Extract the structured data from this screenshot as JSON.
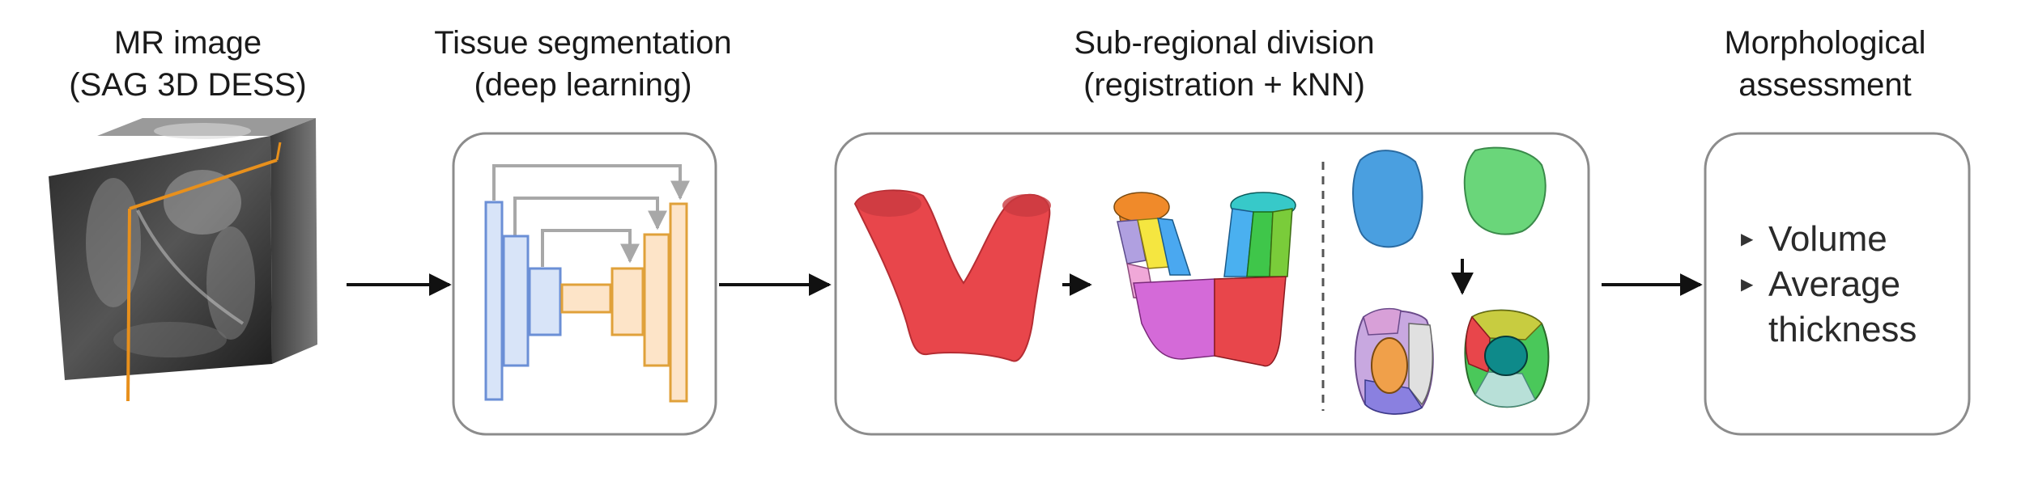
{
  "stages": [
    {
      "title_line1": "MR image",
      "title_line2": "(SAG 3D DESS)"
    },
    {
      "title_line1": "Tissue segmentation",
      "title_line2": "(deep learning)"
    },
    {
      "title_line1": "Sub-regional division",
      "title_line2": "(registration + kNN)"
    },
    {
      "title_line1": "Morphological",
      "title_line2": "assessment"
    }
  ],
  "outputs": {
    "item1": "Volume",
    "item2_line1": "Average",
    "item2_line2": "thickness",
    "bullet_icon": "triangle-right-icon"
  },
  "colors": {
    "unet_blue": "#6b8fd6",
    "unet_orange": "#e0a13a",
    "cartilage_red": "#e8464b",
    "mr_slice_line": "#e8901c"
  }
}
